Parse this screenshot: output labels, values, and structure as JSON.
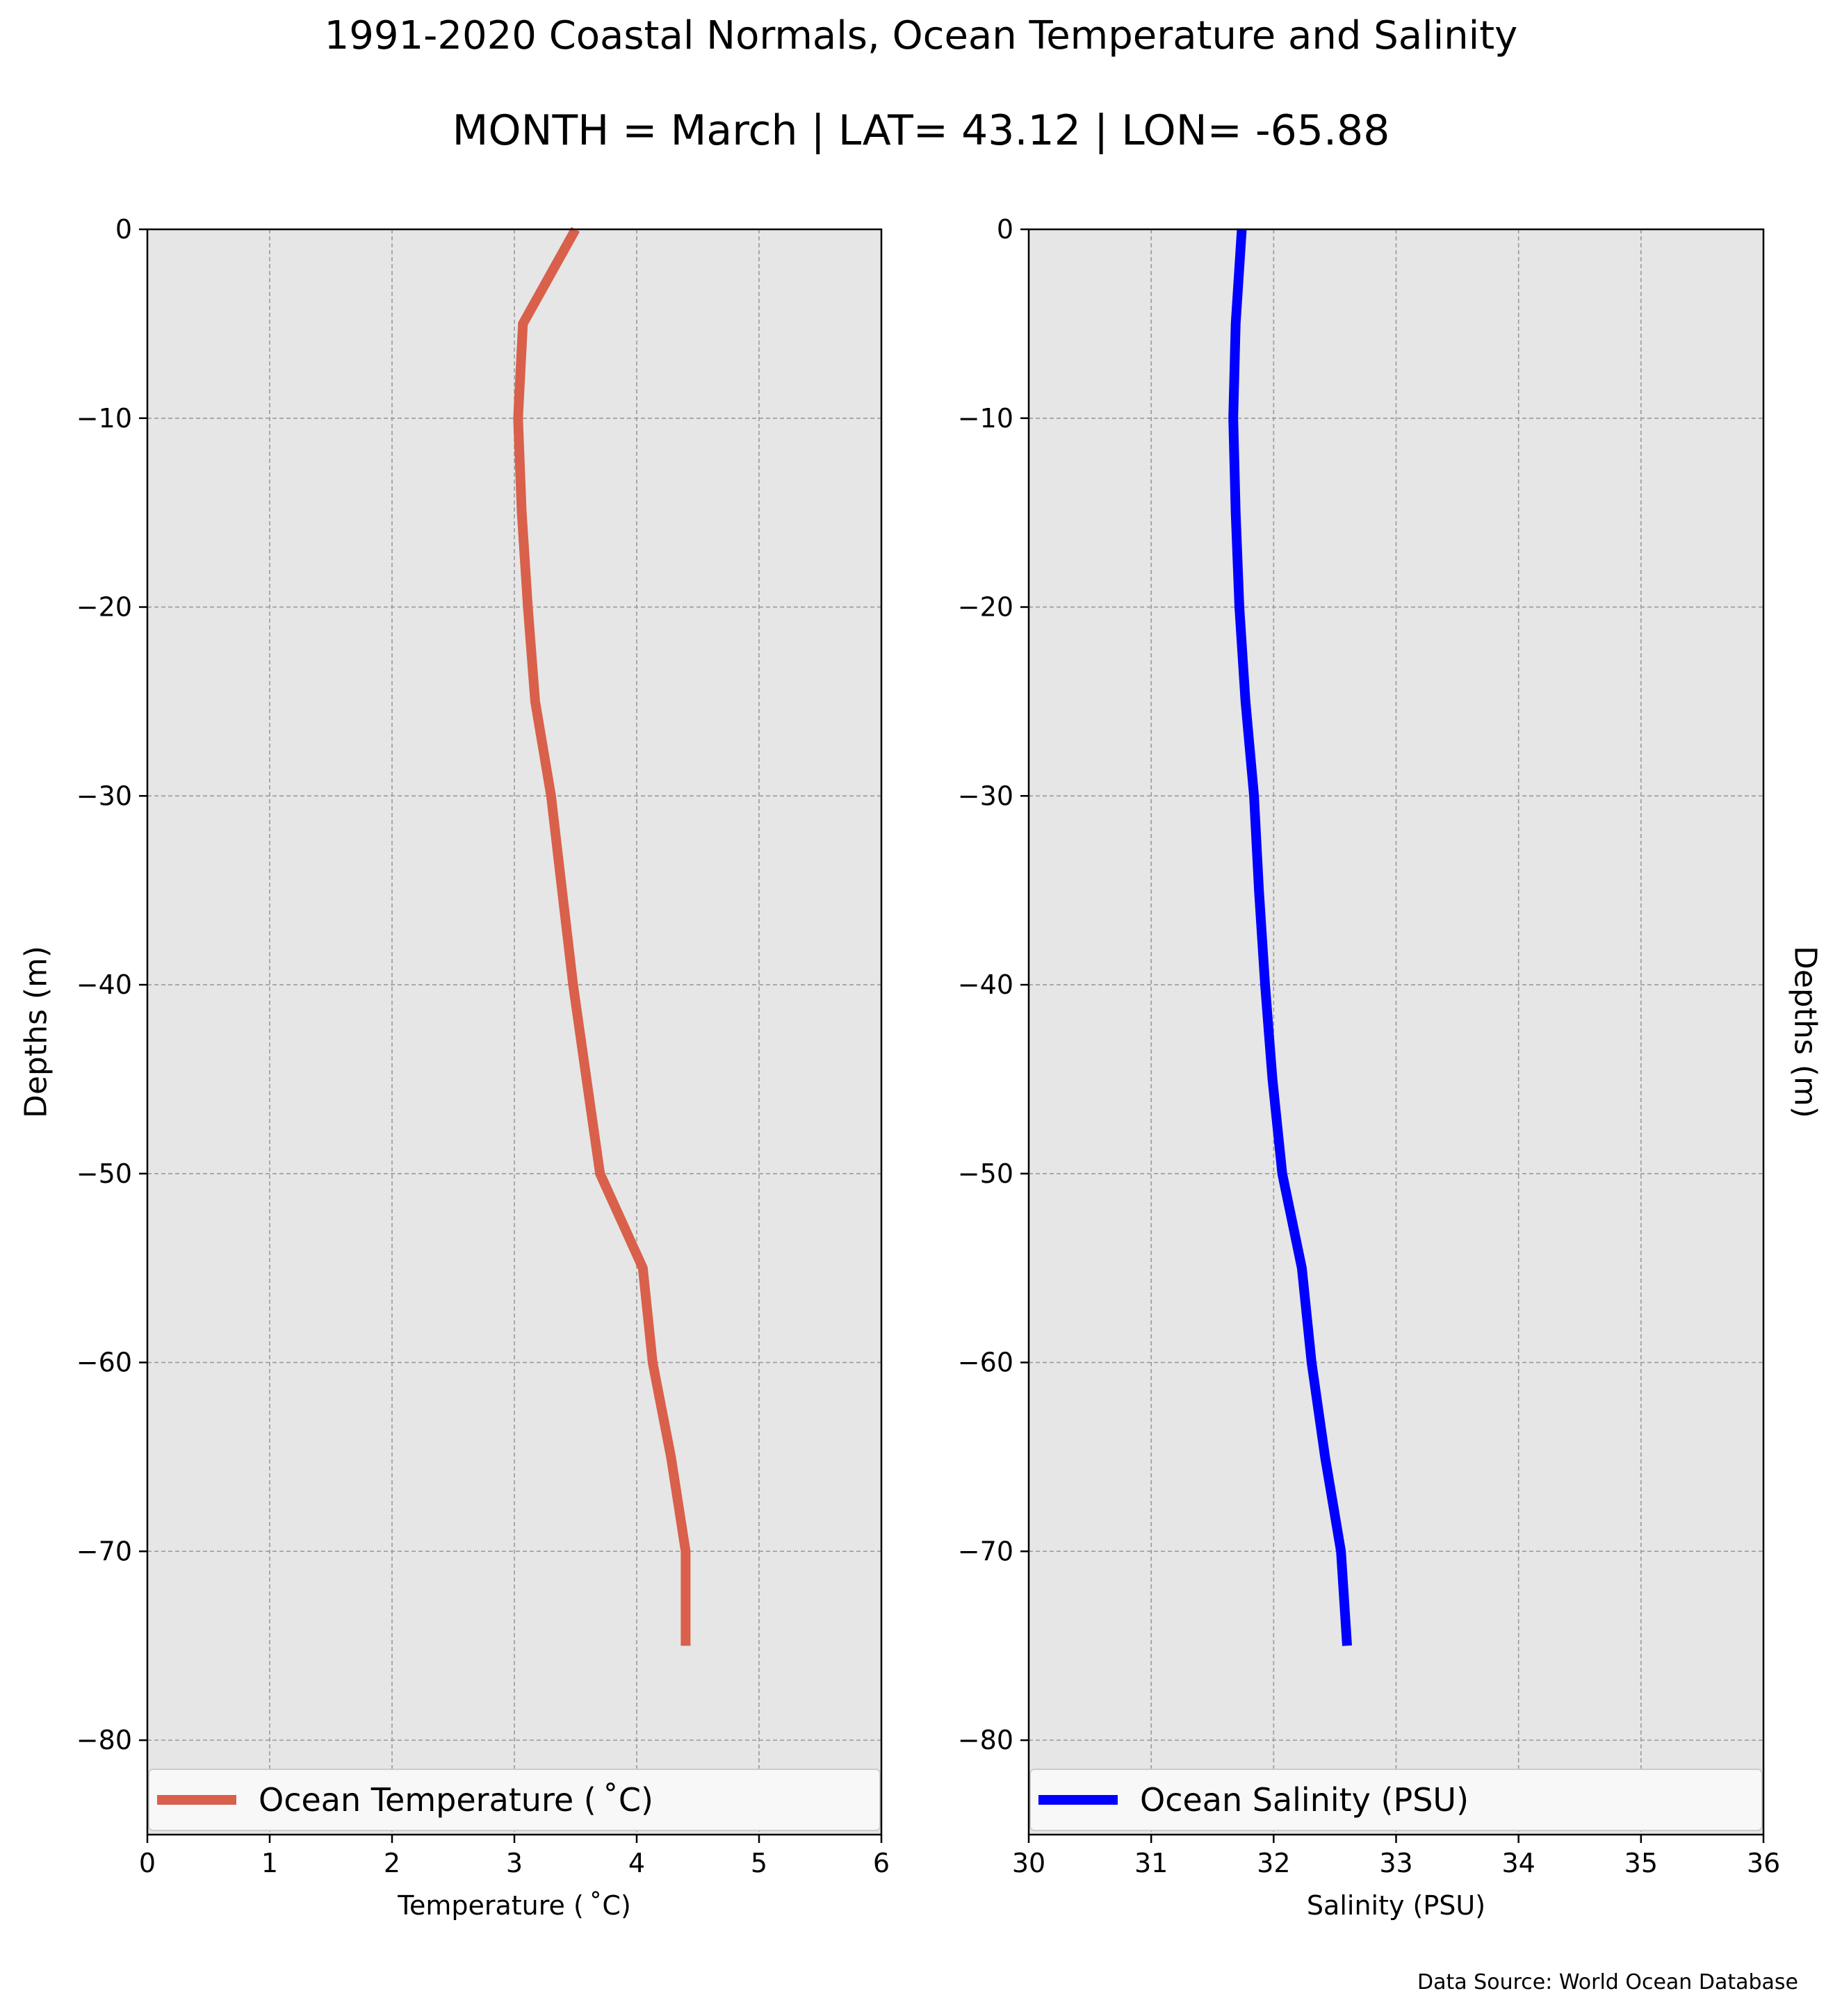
{
  "figure": {
    "title": "1991-2020 Coastal Normals, Ocean Temperature and Salinity",
    "subtitle": "MONTH = March | LAT= 43.12 | LON= -65.88",
    "footer": "Data Source: World Ocean Database"
  },
  "chart_data": [
    {
      "type": "line",
      "xlabel": "Temperature ($^\\circ$C)",
      "xlabel_display": "Temperature ( ˚C)",
      "ylabel": "Depths (m)",
      "xlim": [
        0,
        6
      ],
      "ylim": [
        -85,
        0
      ],
      "xticks": [
        0,
        1,
        2,
        3,
        4,
        5,
        6
      ],
      "yticks": [
        0,
        -10,
        -20,
        -30,
        -40,
        -50,
        -60,
        -70,
        -80
      ],
      "grid": true,
      "legend": "bottom (full width)",
      "series": [
        {
          "name": "Ocean Temperature ( ˚C)",
          "color": "#d9604b",
          "points": [
            {
              "x": 3.5,
              "y": 0
            },
            {
              "x": 3.07,
              "y": -5
            },
            {
              "x": 3.03,
              "y": -10
            },
            {
              "x": 3.06,
              "y": -15
            },
            {
              "x": 3.11,
              "y": -20
            },
            {
              "x": 3.17,
              "y": -25
            },
            {
              "x": 3.3,
              "y": -30
            },
            {
              "x": 3.39,
              "y": -35
            },
            {
              "x": 3.48,
              "y": -40
            },
            {
              "x": 3.59,
              "y": -45
            },
            {
              "x": 3.7,
              "y": -50
            },
            {
              "x": 4.05,
              "y": -55
            },
            {
              "x": 4.13,
              "y": -60
            },
            {
              "x": 4.28,
              "y": -65
            },
            {
              "x": 4.4,
              "y": -70
            },
            {
              "x": 4.4,
              "y": -75
            }
          ]
        }
      ]
    },
    {
      "type": "line",
      "xlabel": "Salinity (PSU)",
      "ylabel": "Depths (m)",
      "ylabel_side": "right",
      "xlim": [
        30,
        36
      ],
      "ylim": [
        -85,
        0
      ],
      "xticks": [
        30,
        31,
        32,
        33,
        34,
        35,
        36
      ],
      "yticks": [
        0,
        -10,
        -20,
        -30,
        -40,
        -50,
        -60,
        -70,
        -80
      ],
      "grid": true,
      "legend": "bottom (full width)",
      "series": [
        {
          "name": "Ocean Salinity (PSU)",
          "color": "#0000ff",
          "points": [
            {
              "x": 31.74,
              "y": 0
            },
            {
              "x": 31.69,
              "y": -5
            },
            {
              "x": 31.67,
              "y": -10
            },
            {
              "x": 31.69,
              "y": -15
            },
            {
              "x": 31.72,
              "y": -20
            },
            {
              "x": 31.77,
              "y": -25
            },
            {
              "x": 31.84,
              "y": -30
            },
            {
              "x": 31.88,
              "y": -35
            },
            {
              "x": 31.93,
              "y": -40
            },
            {
              "x": 31.99,
              "y": -45
            },
            {
              "x": 32.07,
              "y": -50
            },
            {
              "x": 32.23,
              "y": -55
            },
            {
              "x": 32.31,
              "y": -60
            },
            {
              "x": 32.42,
              "y": -65
            },
            {
              "x": 32.55,
              "y": -70
            },
            {
              "x": 32.6,
              "y": -75
            }
          ]
        }
      ]
    }
  ]
}
